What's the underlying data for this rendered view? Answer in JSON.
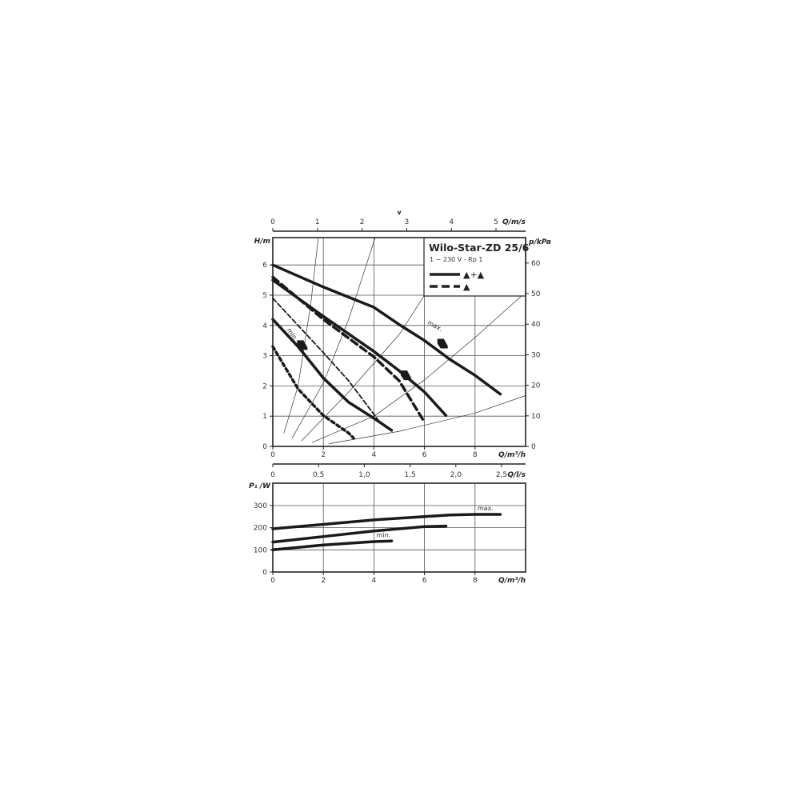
{
  "chart_data": [
    {
      "type": "line",
      "title": "Wilo-Star-ZD 25/6",
      "subtitle": "1 ~ 230 V - Rp 1",
      "xlabel": "Q/m³/h",
      "ylabel": "H/m",
      "y2label": "p/kPa",
      "x2label": "Q/m/s",
      "x2title": "v",
      "xlim": [
        0,
        10
      ],
      "ylim": [
        0,
        6.9
      ],
      "y2lim": [
        0,
        69
      ],
      "x2lim": [
        0,
        5.66
      ],
      "xticks": [
        "0",
        "2",
        "4",
        "6",
        "8"
      ],
      "yticks": [
        "0",
        "1",
        "2",
        "3",
        "4",
        "5",
        "6"
      ],
      "y2ticks": [
        "0",
        "10",
        "20",
        "30",
        "40",
        "50",
        "60"
      ],
      "x2ticks": [
        "0",
        "1",
        "2",
        "3",
        "4",
        "5"
      ],
      "grid": true,
      "legend": {
        "position": "top-right",
        "entries": [
          {
            "style": "solid",
            "label": "▲+▲"
          },
          {
            "style": "dashed",
            "label": "▲"
          }
        ]
      },
      "annotations": [
        "max.",
        "min."
      ],
      "series": [
        {
          "style": "solid",
          "points": [
            [
              0,
              6.0
            ],
            [
              2,
              5.27
            ],
            [
              4,
              4.6
            ],
            [
              5,
              4.03
            ],
            [
              6,
              3.5
            ],
            [
              7,
              2.88
            ],
            [
              8,
              2.35
            ],
            [
              9,
              1.73
            ]
          ]
        },
        {
          "style": "solid",
          "points": [
            [
              0,
              5.5
            ],
            [
              2,
              4.3
            ],
            [
              4,
              3.14
            ],
            [
              5,
              2.5
            ],
            [
              6,
              1.8
            ],
            [
              6.85,
              1.02
            ]
          ]
        },
        {
          "style": "dashed",
          "points": [
            [
              0,
              5.6
            ],
            [
              2,
              4.2
            ],
            [
              4,
              2.96
            ],
            [
              5,
              2.17
            ],
            [
              6,
              0.8
            ]
          ]
        },
        {
          "style": "thin-dashed",
          "points": [
            [
              0,
              4.9
            ],
            [
              2,
              3.1
            ],
            [
              3,
              2.17
            ],
            [
              4,
              1.06
            ],
            [
              4.2,
              0.84
            ]
          ]
        },
        {
          "style": "solid",
          "points": [
            [
              0,
              4.2
            ],
            [
              1,
              3.3
            ],
            [
              2,
              2.26
            ],
            [
              3,
              1.46
            ],
            [
              4,
              0.93
            ],
            [
              4.7,
              0.53
            ]
          ]
        },
        {
          "style": "dotted",
          "points": [
            [
              0,
              3.3
            ],
            [
              1,
              1.9
            ],
            [
              2,
              1.02
            ],
            [
              3,
              0.44
            ],
            [
              3.2,
              0.27
            ]
          ]
        }
      ],
      "system_curves": [
        [
          [
            0.44,
            0.44
          ],
          [
            1,
            2
          ],
          [
            1.5,
            4.7
          ],
          [
            1.8,
            6.9
          ]
        ],
        [
          [
            0.76,
            0.27
          ],
          [
            2,
            2.1
          ],
          [
            3,
            4.2
          ],
          [
            4.05,
            6.95
          ]
        ],
        [
          [
            1.13,
            0.18
          ],
          [
            3,
            1.8
          ],
          [
            5,
            3.7
          ],
          [
            6,
            5.0
          ],
          [
            7.2,
            6.9
          ]
        ],
        [
          [
            1.55,
            0.13
          ],
          [
            4,
            1.0
          ],
          [
            6,
            2.2
          ],
          [
            8,
            3.6
          ],
          [
            10,
            5.1
          ]
        ],
        [
          [
            2.23,
            0.09
          ],
          [
            5,
            0.5
          ],
          [
            8,
            1.1
          ],
          [
            10,
            1.68
          ]
        ]
      ]
    },
    {
      "type": "line",
      "xlabel": "Q/m³/h",
      "ylabel": "P₁ /W",
      "x2label": "Q/l/s",
      "xlim": [
        0,
        10
      ],
      "ylim": [
        0,
        400
      ],
      "x2lim": [
        0,
        2.78
      ],
      "xticks": [
        "0",
        "2",
        "4",
        "6",
        "8"
      ],
      "yticks": [
        "0",
        "100",
        "200",
        "300"
      ],
      "x2ticks": [
        "0",
        "0,5",
        "1,0",
        "1,5",
        "2,0",
        "2,5"
      ],
      "grid": true,
      "annotations": [
        "max.",
        "min."
      ],
      "series": [
        {
          "points": [
            [
              0,
              195
            ],
            [
              2,
              215
            ],
            [
              4,
              235
            ],
            [
              6,
              250
            ],
            [
              7,
              257
            ],
            [
              8,
              260
            ],
            [
              9,
              260
            ]
          ]
        },
        {
          "points": [
            [
              0,
              135
            ],
            [
              2,
              160
            ],
            [
              4,
              185
            ],
            [
              6,
              205
            ],
            [
              6.85,
              207
            ]
          ]
        },
        {
          "points": [
            [
              0,
              100
            ],
            [
              2,
              122
            ],
            [
              4,
              137
            ],
            [
              4.7,
              140
            ]
          ]
        }
      ]
    }
  ]
}
